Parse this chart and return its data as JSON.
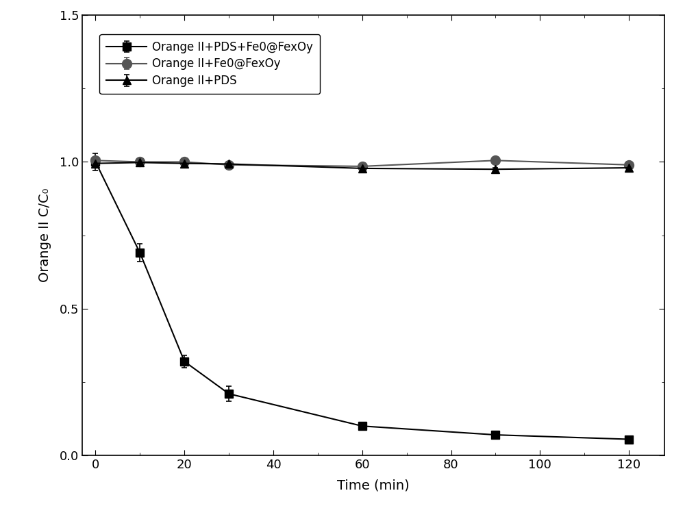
{
  "series": [
    {
      "label": "Orange II+PDS+Fe0@FexOy",
      "x": [
        0,
        10,
        20,
        30,
        60,
        90,
        120
      ],
      "y": [
        1.0,
        0.69,
        0.32,
        0.21,
        0.1,
        0.07,
        0.055
      ],
      "yerr": [
        0.03,
        0.03,
        0.02,
        0.025,
        0.008,
        0.008,
        0.005
      ],
      "marker": "s",
      "color": "#000000",
      "markersize": 9,
      "linewidth": 1.5
    },
    {
      "label": "Orange II+Fe0@FexOy",
      "x": [
        0,
        10,
        20,
        30,
        60,
        90,
        120
      ],
      "y": [
        1.005,
        1.0,
        1.0,
        0.99,
        0.985,
        1.005,
        0.99
      ],
      "yerr": [
        0.012,
        0.008,
        0.01,
        0.008,
        0.008,
        0.01,
        0.008
      ],
      "marker": "o",
      "color": "#555555",
      "markersize": 10,
      "linewidth": 1.5
    },
    {
      "label": "Orange II+PDS",
      "x": [
        0,
        10,
        20,
        30,
        60,
        90,
        120
      ],
      "y": [
        0.995,
        0.998,
        0.995,
        0.993,
        0.978,
        0.975,
        0.98
      ],
      "yerr": [
        0.01,
        0.006,
        0.008,
        0.006,
        0.006,
        0.006,
        0.008
      ],
      "marker": "^",
      "color": "#000000",
      "markersize": 9,
      "linewidth": 1.5
    }
  ],
  "xlabel": "Time (min)",
  "ylabel": "Orange II C/C₀",
  "xlim": [
    -3,
    128
  ],
  "ylim": [
    0.0,
    1.5
  ],
  "xticks": [
    0,
    20,
    40,
    60,
    80,
    100,
    120
  ],
  "yticks": [
    0.0,
    0.5,
    1.0,
    1.5
  ],
  "figsize": [
    10.0,
    7.39
  ],
  "dpi": 100
}
